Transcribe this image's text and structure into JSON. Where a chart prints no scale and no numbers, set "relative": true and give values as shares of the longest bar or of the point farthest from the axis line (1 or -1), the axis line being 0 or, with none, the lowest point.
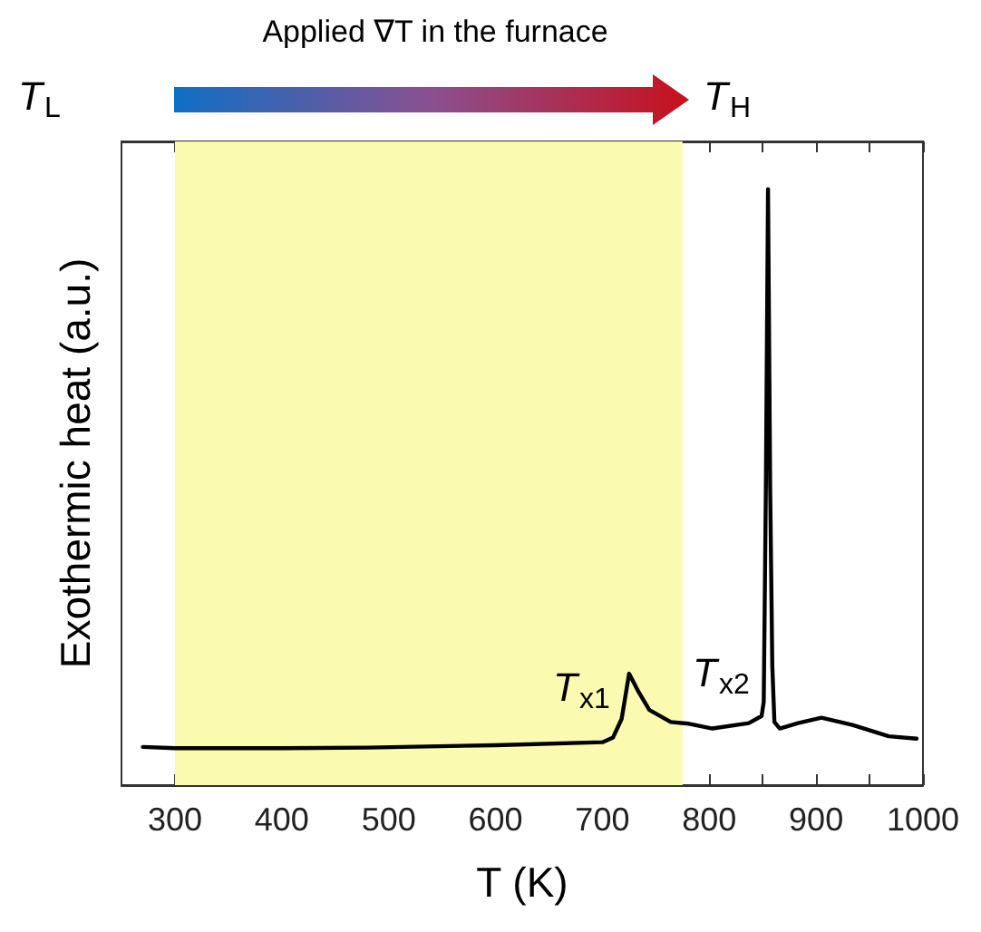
{
  "chart_data": {
    "type": "line",
    "title": "Applied ∇T in the furnace",
    "xlabel": "T (K)",
    "ylabel": "Exothermic heat (a.u.)",
    "relative": true,
    "xlim": [
      250,
      1000
    ],
    "xticks": [
      300,
      {
        "value": 350,
        "label": null
      },
      400,
      {
        "value": 450,
        "label": null
      },
      500,
      {
        "value": 550,
        "label": null
      },
      600,
      {
        "value": 650,
        "label": null
      },
      700,
      {
        "value": 750,
        "label": null
      },
      800,
      {
        "value": 850,
        "label": null
      },
      900,
      {
        "value": 950,
        "label": null
      },
      1000
    ],
    "series": [
      {
        "color": "#000000",
        "x": [
          270,
          300,
          400,
          480,
          600,
          700,
          710,
          718,
          725,
          734,
          744,
          764,
          781,
          803,
          837,
          849,
          851,
          853,
          855,
          857,
          859,
          861,
          866,
          883,
          905,
          934,
          968,
          994
        ],
        "values": [
          0.064,
          0.062,
          0.062,
          0.063,
          0.067,
          0.072,
          0.08,
          0.111,
          0.187,
          0.156,
          0.126,
          0.106,
          0.103,
          0.095,
          0.104,
          0.116,
          0.14,
          0.5,
          1,
          0.5,
          0.2,
          0.106,
          0.095,
          0.104,
          0.113,
          0.101,
          0.082,
          0.078
        ]
      }
    ],
    "bands": [
      {
        "axis": "x",
        "from": 300,
        "to": 775,
        "color": "#fafab0"
      }
    ],
    "annotations": [
      "T$_{L}$",
      "T$_{H}$",
      "T$_{x1}$",
      "T$_{x2}$"
    ],
    "grid": false,
    "marker": "none",
    "line_style": "solid"
  }
}
